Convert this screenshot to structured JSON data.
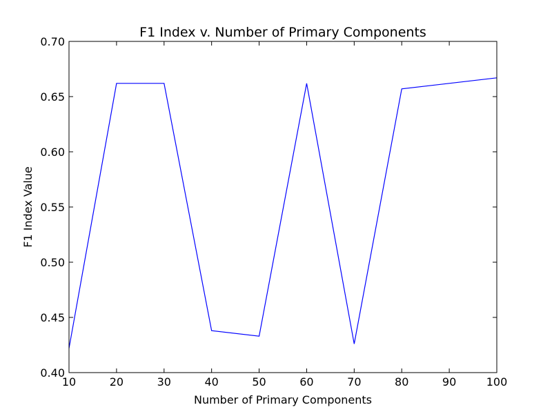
{
  "chart_data": {
    "type": "line",
    "title": "F1 Index v. Number of Primary Components",
    "xlabel": "Number of Primary Components",
    "ylabel": "F1 Index Value",
    "xlim": [
      10,
      100
    ],
    "ylim": [
      0.4,
      0.7
    ],
    "x_ticks": [
      "10",
      "20",
      "30",
      "40",
      "50",
      "60",
      "70",
      "80",
      "90",
      "100"
    ],
    "y_ticks": [
      "0.40",
      "0.45",
      "0.50",
      "0.55",
      "0.60",
      "0.65",
      "0.70"
    ],
    "grid": false,
    "series": [
      {
        "color": "#0000ff",
        "x": [
          10,
          20,
          30,
          40,
          50,
          60,
          70,
          80,
          90,
          100
        ],
        "y": [
          0.422,
          0.662,
          0.662,
          0.438,
          0.433,
          0.662,
          0.426,
          0.657,
          0.662,
          0.667
        ]
      }
    ]
  }
}
